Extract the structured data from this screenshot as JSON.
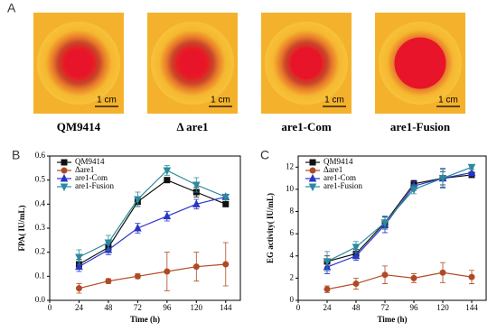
{
  "panel_a": {
    "label": "A",
    "scale": "1 cm",
    "plates": [
      "QM9414",
      "Δ are1",
      "are1-Com",
      "are1-Fusion"
    ]
  },
  "chart_data": [
    {
      "type": "line",
      "panel": "B",
      "x_label": "Time (h)",
      "y_label": "FPA( IU/mL)",
      "x": [
        24,
        48,
        72,
        96,
        120,
        144
      ],
      "xlim": [
        0,
        156
      ],
      "xticks": [
        0,
        24,
        48,
        72,
        96,
        120,
        144
      ],
      "ylim": [
        0,
        0.6
      ],
      "yticks": [
        {
          "value": 0,
          "label": "0.0"
        },
        0.1,
        0.2,
        0.3,
        0.4,
        0.5,
        0.6
      ],
      "legend": "upper left",
      "series": [
        {
          "name": "QM9414",
          "color": "#111111",
          "marker": "square",
          "values": [
            0.15,
            0.22,
            0.41,
            0.5,
            0.45,
            0.4
          ],
          "errors": [
            0.02,
            0.02,
            0.02,
            0.01,
            0.02,
            0.01
          ]
        },
        {
          "name": "Δare1",
          "color": "#b04a24",
          "marker": "circle",
          "values": [
            0.05,
            0.08,
            0.1,
            0.12,
            0.14,
            0.15
          ],
          "errors": [
            0.02,
            0.01,
            0.01,
            0.08,
            0.06,
            0.09
          ]
        },
        {
          "name": "are1-Com",
          "color": "#2a35c8",
          "marker": "triangle-up",
          "values": [
            0.14,
            0.21,
            0.3,
            0.35,
            0.4,
            0.43
          ],
          "errors": [
            0.02,
            0.02,
            0.02,
            0.02,
            0.02,
            0.01
          ]
        },
        {
          "name": "are1-Fusion",
          "color": "#2b8a9c",
          "marker": "triangle-down",
          "values": [
            0.18,
            0.24,
            0.42,
            0.54,
            0.48,
            0.43
          ],
          "errors": [
            0.03,
            0.03,
            0.03,
            0.02,
            0.03,
            0.01
          ]
        }
      ]
    },
    {
      "type": "line",
      "panel": "C",
      "x_label": "Time (h)",
      "y_label": "EG activity( IU/mL)",
      "x": [
        24,
        48,
        72,
        96,
        120,
        144
      ],
      "xlim": [
        0,
        156
      ],
      "xticks": [
        0,
        24,
        48,
        72,
        96,
        120,
        144
      ],
      "ylim": [
        0,
        13
      ],
      "yticks": [
        0,
        2,
        4,
        6,
        8,
        10,
        12
      ],
      "legend": "upper left",
      "series": [
        {
          "name": "QM9414",
          "color": "#111111",
          "marker": "square",
          "values": [
            3.5,
            4.2,
            7,
            10.5,
            11,
            11.3
          ],
          "errors": [
            0.5,
            0.4,
            0.5,
            0.3,
            0.6,
            0.2
          ]
        },
        {
          "name": "Δare1",
          "color": "#b04a24",
          "marker": "circle",
          "values": [
            1,
            1.5,
            2.3,
            2,
            2.5,
            2.1
          ],
          "errors": [
            0.3,
            0.5,
            0.8,
            0.4,
            0.9,
            0.6
          ]
        },
        {
          "name": "are1-Com",
          "color": "#2a35c8",
          "marker": "triangle-up",
          "values": [
            3,
            4,
            6.8,
            10.3,
            11,
            11.5
          ],
          "errors": [
            0.6,
            0.4,
            0.7,
            0.4,
            0.8,
            0.3
          ]
        },
        {
          "name": "are1-Fusion",
          "color": "#2b8a9c",
          "marker": "triangle-down",
          "values": [
            3.5,
            4.8,
            7,
            10,
            11,
            12
          ],
          "errors": [
            0.9,
            0.5,
            0.6,
            0.4,
            0.9,
            0.2
          ]
        }
      ]
    }
  ]
}
